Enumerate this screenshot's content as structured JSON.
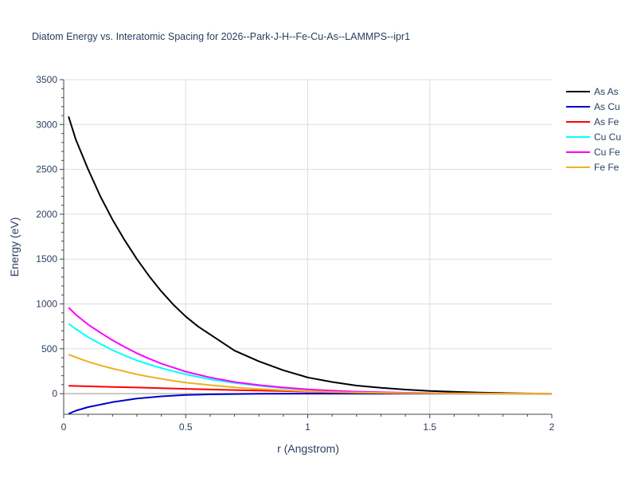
{
  "chart_data": {
    "type": "line",
    "title": "Diatom Energy vs. Interatomic Spacing for 2026--Park-J-H--Fe-Cu-As--LAMMPS--ipr1",
    "xlabel": "r (Angstrom)",
    "ylabel": "Energy (eV)",
    "xlim": [
      0,
      2
    ],
    "ylim": [
      -230,
      3500
    ],
    "x_ticks": [
      0,
      0.5,
      1,
      1.5,
      2
    ],
    "x_tick_labels": [
      "0",
      "0.5",
      "1",
      "1.5",
      "2"
    ],
    "y_ticks": [
      0,
      500,
      1000,
      1500,
      2000,
      2500,
      3000,
      3500
    ],
    "y_tick_labels": [
      "0",
      "500",
      "1000",
      "1500",
      "2000",
      "2500",
      "3000",
      "3500"
    ],
    "grid": true,
    "legend_position": "top-right",
    "series": [
      {
        "name": "As As",
        "color": "#000000",
        "x": [
          0.02,
          0.05,
          0.1,
          0.15,
          0.2,
          0.25,
          0.3,
          0.35,
          0.4,
          0.45,
          0.5,
          0.55,
          0.6,
          0.7,
          0.8,
          0.9,
          1.0,
          1.1,
          1.2,
          1.3,
          1.4,
          1.5,
          1.6,
          1.7,
          1.8,
          1.9,
          2.0
        ],
        "y": [
          3090,
          2830,
          2500,
          2200,
          1940,
          1710,
          1500,
          1310,
          1140,
          990,
          860,
          750,
          660,
          480,
          360,
          260,
          180,
          130,
          90,
          65,
          45,
          30,
          20,
          12,
          6,
          2,
          0
        ]
      },
      {
        "name": "As Cu",
        "color": "#0000cc",
        "x": [
          0.02,
          0.05,
          0.1,
          0.2,
          0.3,
          0.4,
          0.5,
          0.6,
          0.7,
          0.8,
          1.0,
          1.2,
          1.5,
          1.8,
          2.0
        ],
        "y": [
          -225,
          -190,
          -150,
          -95,
          -55,
          -30,
          -15,
          -8,
          -4,
          -2,
          0,
          0,
          0,
          0,
          0
        ]
      },
      {
        "name": "As Fe",
        "color": "#ff0000",
        "x": [
          0.02,
          0.1,
          0.2,
          0.3,
          0.4,
          0.5,
          0.6,
          0.7,
          0.8,
          0.9,
          1.0,
          1.1,
          1.2,
          1.4,
          1.6,
          1.8,
          2.0
        ],
        "y": [
          88,
          82,
          75,
          68,
          60,
          53,
          46,
          40,
          34,
          28,
          22,
          17,
          12,
          6,
          3,
          1,
          0
        ]
      },
      {
        "name": "Cu Cu",
        "color": "#00ffff",
        "x": [
          0.02,
          0.05,
          0.1,
          0.15,
          0.2,
          0.25,
          0.3,
          0.35,
          0.4,
          0.45,
          0.5,
          0.6,
          0.7,
          0.8,
          0.9,
          1.0,
          1.1,
          1.2,
          1.4,
          1.6,
          1.8,
          2.0
        ],
        "y": [
          780,
          720,
          630,
          555,
          485,
          425,
          370,
          325,
          285,
          250,
          215,
          160,
          120,
          88,
          62,
          44,
          30,
          20,
          8,
          3,
          1,
          0
        ]
      },
      {
        "name": "Cu Fe",
        "color": "#ff00ff",
        "x": [
          0.02,
          0.05,
          0.1,
          0.15,
          0.2,
          0.25,
          0.3,
          0.35,
          0.4,
          0.45,
          0.5,
          0.6,
          0.7,
          0.8,
          0.9,
          1.0,
          1.1,
          1.2,
          1.4,
          1.6,
          1.8,
          2.0
        ],
        "y": [
          960,
          880,
          770,
          680,
          595,
          520,
          450,
          390,
          335,
          290,
          245,
          180,
          130,
          95,
          68,
          48,
          33,
          22,
          10,
          4,
          1,
          0
        ]
      },
      {
        "name": "Fe Fe",
        "color": "#f0b020",
        "x": [
          0.02,
          0.05,
          0.1,
          0.15,
          0.2,
          0.25,
          0.3,
          0.35,
          0.4,
          0.45,
          0.5,
          0.6,
          0.7,
          0.8,
          0.9,
          1.0,
          1.1,
          1.2,
          1.4,
          1.6,
          1.8,
          2.0
        ],
        "y": [
          435,
          405,
          355,
          315,
          280,
          248,
          215,
          188,
          165,
          143,
          123,
          95,
          70,
          52,
          38,
          27,
          18,
          12,
          5,
          2,
          0,
          0
        ]
      }
    ]
  }
}
